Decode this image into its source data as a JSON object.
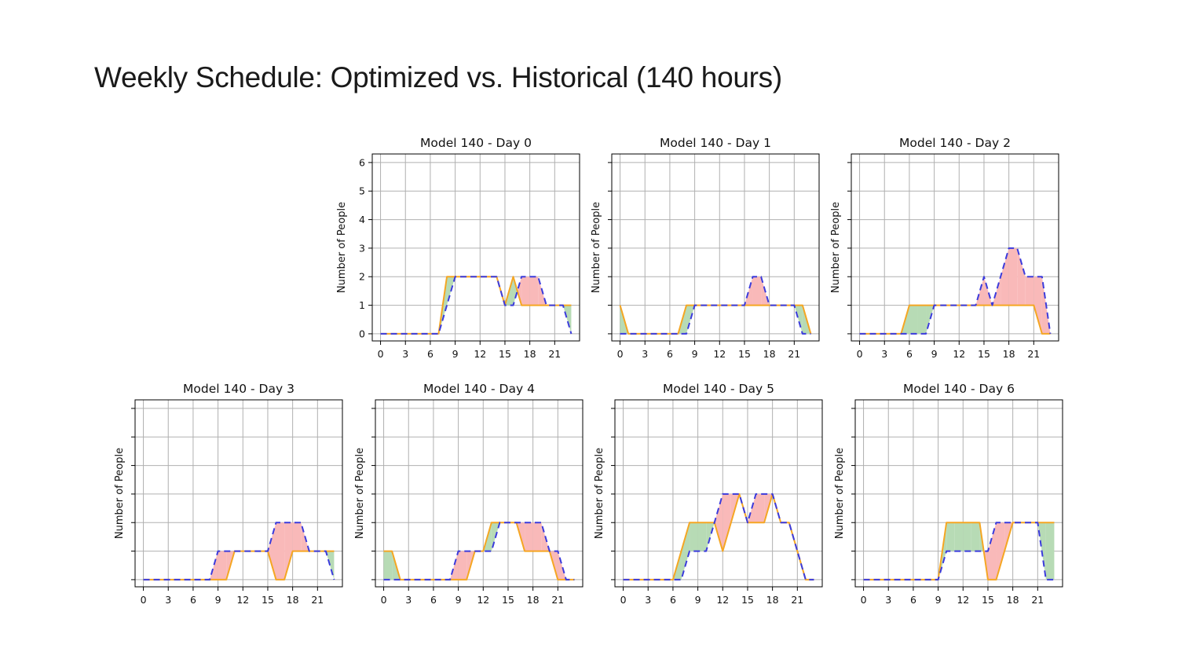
{
  "slide": {
    "title": "Weekly Schedule: Optimized vs. Historical (140 hours)"
  },
  "colors": {
    "optimized_line": "#f5a623",
    "historical_line": "#3b3bdc",
    "surplus_fill": "#b7dbb5",
    "deficit_fill": "#f9b9b9",
    "grid": "#b0b0b0"
  },
  "chart_data": [
    {
      "type": "line",
      "title": "Model 140 - Day 0",
      "ylabel": "Number of People",
      "show_ytick_labels": true,
      "xlim": [
        -1,
        24
      ],
      "ylim": [
        -0.25,
        6.3
      ],
      "xticks": [
        0,
        3,
        6,
        9,
        12,
        15,
        18,
        21
      ],
      "yticks": [
        0,
        1,
        2,
        3,
        4,
        5,
        6
      ],
      "series": [
        {
          "name": "Optimized",
          "style": "solid",
          "x": [
            0,
            1,
            2,
            3,
            4,
            5,
            6,
            7,
            8,
            9,
            10,
            11,
            12,
            13,
            14,
            15,
            16,
            17,
            18,
            19,
            20,
            21,
            22,
            23
          ],
          "values": [
            0,
            0,
            0,
            0,
            0,
            0,
            0,
            0,
            2,
            2,
            2,
            2,
            2,
            2,
            2,
            1,
            2,
            1,
            1,
            1,
            1,
            1,
            1,
            1
          ]
        },
        {
          "name": "Historical",
          "style": "dashed",
          "x": [
            0,
            1,
            2,
            3,
            4,
            5,
            6,
            7,
            8,
            9,
            10,
            11,
            12,
            13,
            14,
            15,
            16,
            17,
            18,
            19,
            20,
            21,
            22,
            23
          ],
          "values": [
            0,
            0,
            0,
            0,
            0,
            0,
            0,
            0,
            1,
            2,
            2,
            2,
            2,
            2,
            2,
            1,
            1,
            2,
            2,
            2,
            1,
            1,
            1,
            0
          ]
        }
      ]
    },
    {
      "type": "line",
      "title": "Model 140 - Day 1",
      "ylabel": "Number of People",
      "show_ytick_labels": false,
      "xlim": [
        -1,
        24
      ],
      "ylim": [
        -0.25,
        6.3
      ],
      "xticks": [
        0,
        3,
        6,
        9,
        12,
        15,
        18,
        21
      ],
      "yticks": [
        0,
        1,
        2,
        3,
        4,
        5,
        6
      ],
      "series": [
        {
          "name": "Optimized",
          "style": "solid",
          "x": [
            0,
            1,
            2,
            3,
            4,
            5,
            6,
            7,
            8,
            9,
            10,
            11,
            12,
            13,
            14,
            15,
            16,
            17,
            18,
            19,
            20,
            21,
            22,
            23
          ],
          "values": [
            1,
            0,
            0,
            0,
            0,
            0,
            0,
            0,
            1,
            1,
            1,
            1,
            1,
            1,
            1,
            1,
            1,
            1,
            1,
            1,
            1,
            1,
            1,
            0
          ]
        },
        {
          "name": "Historical",
          "style": "dashed",
          "x": [
            0,
            1,
            2,
            3,
            4,
            5,
            6,
            7,
            8,
            9,
            10,
            11,
            12,
            13,
            14,
            15,
            16,
            17,
            18,
            19,
            20,
            21,
            22,
            23
          ],
          "values": [
            0,
            0,
            0,
            0,
            0,
            0,
            0,
            0,
            0,
            1,
            1,
            1,
            1,
            1,
            1,
            1,
            2,
            2,
            1,
            1,
            1,
            1,
            0,
            0
          ]
        }
      ]
    },
    {
      "type": "line",
      "title": "Model 140 - Day 2",
      "ylabel": "Number of People",
      "show_ytick_labels": false,
      "xlim": [
        -1,
        24
      ],
      "ylim": [
        -0.25,
        6.3
      ],
      "xticks": [
        0,
        3,
        6,
        9,
        12,
        15,
        18,
        21
      ],
      "yticks": [
        0,
        1,
        2,
        3,
        4,
        5,
        6
      ],
      "series": [
        {
          "name": "Optimized",
          "style": "solid",
          "x": [
            0,
            1,
            2,
            3,
            4,
            5,
            6,
            7,
            8,
            9,
            10,
            11,
            12,
            13,
            14,
            15,
            16,
            17,
            18,
            19,
            20,
            21,
            22,
            23
          ],
          "values": [
            0,
            0,
            0,
            0,
            0,
            0,
            1,
            1,
            1,
            1,
            1,
            1,
            1,
            1,
            1,
            1,
            1,
            1,
            1,
            1,
            1,
            1,
            0,
            0
          ]
        },
        {
          "name": "Historical",
          "style": "dashed",
          "x": [
            0,
            1,
            2,
            3,
            4,
            5,
            6,
            7,
            8,
            9,
            10,
            11,
            12,
            13,
            14,
            15,
            16,
            17,
            18,
            19,
            20,
            21,
            22,
            23
          ],
          "values": [
            0,
            0,
            0,
            0,
            0,
            0,
            0,
            0,
            0,
            1,
            1,
            1,
            1,
            1,
            1,
            2,
            1,
            2,
            3,
            3,
            2,
            2,
            2,
            0
          ]
        }
      ]
    },
    {
      "type": "line",
      "title": "Model 140 - Day 3",
      "ylabel": "Number of People",
      "show_ytick_labels": false,
      "xlim": [
        -1,
        24
      ],
      "ylim": [
        -0.25,
        6.3
      ],
      "xticks": [
        0,
        3,
        6,
        9,
        12,
        15,
        18,
        21
      ],
      "yticks": [
        0,
        1,
        2,
        3,
        4,
        5,
        6
      ],
      "series": [
        {
          "name": "Optimized",
          "style": "solid",
          "x": [
            0,
            1,
            2,
            3,
            4,
            5,
            6,
            7,
            8,
            9,
            10,
            11,
            12,
            13,
            14,
            15,
            16,
            17,
            18,
            19,
            20,
            21,
            22,
            23
          ],
          "values": [
            0,
            0,
            0,
            0,
            0,
            0,
            0,
            0,
            0,
            0,
            0,
            1,
            1,
            1,
            1,
            1,
            0,
            0,
            1,
            1,
            1,
            1,
            1,
            1
          ]
        },
        {
          "name": "Historical",
          "style": "dashed",
          "x": [
            0,
            1,
            2,
            3,
            4,
            5,
            6,
            7,
            8,
            9,
            10,
            11,
            12,
            13,
            14,
            15,
            16,
            17,
            18,
            19,
            20,
            21,
            22,
            23
          ],
          "values": [
            0,
            0,
            0,
            0,
            0,
            0,
            0,
            0,
            0,
            1,
            1,
            1,
            1,
            1,
            1,
            1,
            2,
            2,
            2,
            2,
            1,
            1,
            1,
            0
          ]
        }
      ]
    },
    {
      "type": "line",
      "title": "Model 140 - Day 4",
      "ylabel": "Number of People",
      "show_ytick_labels": false,
      "xlim": [
        -1,
        24
      ],
      "ylim": [
        -0.25,
        6.3
      ],
      "xticks": [
        0,
        3,
        6,
        9,
        12,
        15,
        18,
        21
      ],
      "yticks": [
        0,
        1,
        2,
        3,
        4,
        5,
        6
      ],
      "series": [
        {
          "name": "Optimized",
          "style": "solid",
          "x": [
            0,
            1,
            2,
            3,
            4,
            5,
            6,
            7,
            8,
            9,
            10,
            11,
            12,
            13,
            14,
            15,
            16,
            17,
            18,
            19,
            20,
            21,
            22,
            23
          ],
          "values": [
            1,
            1,
            0,
            0,
            0,
            0,
            0,
            0,
            0,
            0,
            0,
            1,
            1,
            2,
            2,
            2,
            2,
            1,
            1,
            1,
            1,
            0,
            0,
            0
          ]
        },
        {
          "name": "Historical",
          "style": "dashed",
          "x": [
            0,
            1,
            2,
            3,
            4,
            5,
            6,
            7,
            8,
            9,
            10,
            11,
            12,
            13,
            14,
            15,
            16,
            17,
            18,
            19,
            20,
            21,
            22,
            23
          ],
          "values": [
            0,
            0,
            0,
            0,
            0,
            0,
            0,
            0,
            0,
            1,
            1,
            1,
            1,
            1,
            2,
            2,
            2,
            2,
            2,
            2,
            1,
            1,
            0,
            0
          ]
        }
      ]
    },
    {
      "type": "line",
      "title": "Model 140 - Day 5",
      "ylabel": "Number of People",
      "show_ytick_labels": false,
      "xlim": [
        -1,
        24
      ],
      "ylim": [
        -0.25,
        6.3
      ],
      "xticks": [
        0,
        3,
        6,
        9,
        12,
        15,
        18,
        21
      ],
      "yticks": [
        0,
        1,
        2,
        3,
        4,
        5,
        6
      ],
      "series": [
        {
          "name": "Optimized",
          "style": "solid",
          "x": [
            0,
            1,
            2,
            3,
            4,
            5,
            6,
            7,
            8,
            9,
            10,
            11,
            12,
            13,
            14,
            15,
            16,
            17,
            18,
            19,
            20,
            21,
            22,
            23
          ],
          "values": [
            0,
            0,
            0,
            0,
            0,
            0,
            0,
            1,
            2,
            2,
            2,
            2,
            1,
            2,
            3,
            2,
            2,
            2,
            3,
            2,
            2,
            1,
            0,
            0
          ]
        },
        {
          "name": "Historical",
          "style": "dashed",
          "x": [
            0,
            1,
            2,
            3,
            4,
            5,
            6,
            7,
            8,
            9,
            10,
            11,
            12,
            13,
            14,
            15,
            16,
            17,
            18,
            19,
            20,
            21,
            22,
            23
          ],
          "values": [
            0,
            0,
            0,
            0,
            0,
            0,
            0,
            0,
            1,
            1,
            1,
            2,
            3,
            3,
            3,
            2,
            3,
            3,
            3,
            2,
            2,
            1,
            0,
            0
          ]
        }
      ]
    },
    {
      "type": "line",
      "title": "Model 140 - Day 6",
      "ylabel": "Number of People",
      "show_ytick_labels": false,
      "xlim": [
        -1,
        24
      ],
      "ylim": [
        -0.25,
        6.3
      ],
      "xticks": [
        0,
        3,
        6,
        9,
        12,
        15,
        18,
        21
      ],
      "yticks": [
        0,
        1,
        2,
        3,
        4,
        5,
        6
      ],
      "series": [
        {
          "name": "Optimized",
          "style": "solid",
          "x": [
            0,
            1,
            2,
            3,
            4,
            5,
            6,
            7,
            8,
            9,
            10,
            11,
            12,
            13,
            14,
            15,
            16,
            17,
            18,
            19,
            20,
            21,
            22,
            23
          ],
          "values": [
            0,
            0,
            0,
            0,
            0,
            0,
            0,
            0,
            0,
            0,
            2,
            2,
            2,
            2,
            2,
            0,
            0,
            1,
            2,
            2,
            2,
            2,
            2,
            2
          ]
        },
        {
          "name": "Historical",
          "style": "dashed",
          "x": [
            0,
            1,
            2,
            3,
            4,
            5,
            6,
            7,
            8,
            9,
            10,
            11,
            12,
            13,
            14,
            15,
            16,
            17,
            18,
            19,
            20,
            21,
            22,
            23
          ],
          "values": [
            0,
            0,
            0,
            0,
            0,
            0,
            0,
            0,
            0,
            0,
            1,
            1,
            1,
            1,
            1,
            1,
            2,
            2,
            2,
            2,
            2,
            2,
            0,
            0
          ]
        }
      ]
    }
  ]
}
